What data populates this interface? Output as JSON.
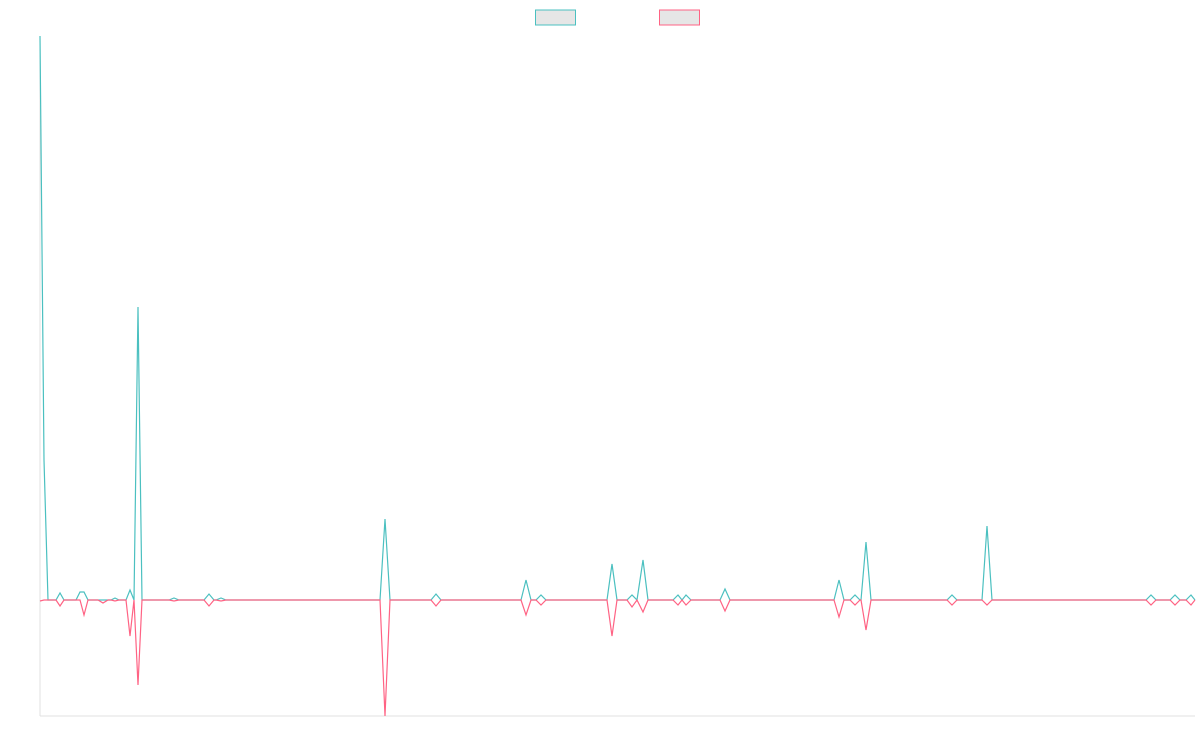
{
  "chart_data": {
    "type": "line",
    "x": [
      0,
      4,
      8,
      16,
      20,
      24,
      36,
      40,
      44,
      48,
      58,
      63,
      68,
      71,
      75,
      79,
      86,
      90,
      94,
      98,
      102,
      129,
      134,
      139,
      164,
      169,
      174,
      176,
      181,
      186,
      340,
      345,
      350,
      391,
      396,
      401,
      481,
      486,
      491,
      496,
      501,
      506,
      567,
      572,
      577,
      587,
      592,
      597,
      603,
      608,
      633,
      638,
      642,
      646,
      651,
      680,
      685,
      690,
      794,
      799,
      804,
      810,
      815,
      820,
      821,
      826,
      831,
      907,
      912,
      917,
      942,
      947,
      952,
      1106,
      1111,
      1116,
      1130,
      1135,
      1140,
      1146,
      1151,
      1155
    ],
    "series": [
      {
        "color": "#4bc0c0",
        "values": [
          564,
          140,
          0,
          0,
          7,
          0,
          0,
          8,
          8,
          0,
          0,
          0,
          0,
          0,
          2,
          0,
          0,
          10,
          0,
          293,
          0,
          0,
          2,
          0,
          0,
          6,
          0,
          0,
          2,
          0,
          0,
          81,
          0,
          0,
          6,
          0,
          0,
          20,
          0,
          0,
          5,
          0,
          0,
          36,
          0,
          0,
          5,
          0,
          40,
          0,
          0,
          5,
          0,
          5,
          0,
          0,
          11,
          0,
          0,
          20,
          0,
          0,
          5,
          0,
          0,
          58,
          0,
          0,
          5,
          0,
          0,
          74,
          0,
          0,
          5,
          0,
          0,
          5,
          0,
          0,
          5,
          0
        ]
      },
      {
        "color": "#ff6384",
        "values": [
          -1,
          0,
          0,
          0,
          -6,
          0,
          0,
          0,
          -15,
          0,
          0,
          -3,
          0,
          0,
          -1,
          0,
          0,
          -36,
          0,
          -85,
          0,
          0,
          -1,
          0,
          0,
          -6,
          0,
          0,
          -1,
          0,
          0,
          -116,
          0,
          0,
          -6,
          0,
          0,
          -15,
          0,
          0,
          -5,
          0,
          0,
          -36,
          0,
          0,
          -7,
          0,
          -12,
          0,
          0,
          -5,
          0,
          -5,
          0,
          0,
          -11,
          0,
          0,
          -17,
          0,
          0,
          -5,
          0,
          0,
          -30,
          0,
          0,
          -5,
          0,
          0,
          -5,
          0,
          0,
          -5,
          0,
          0,
          -5,
          0,
          0,
          -5,
          0
        ]
      }
    ],
    "xlim": [
      0,
      1155
    ],
    "ylim": [
      -116,
      564
    ],
    "legend": "top"
  }
}
